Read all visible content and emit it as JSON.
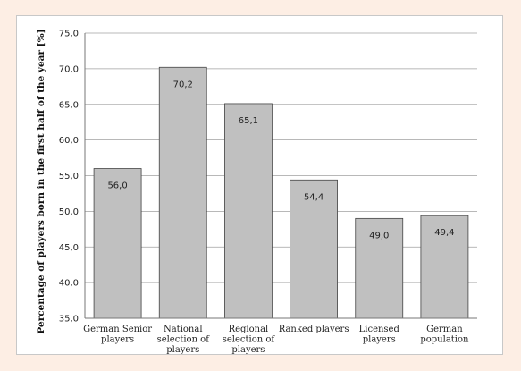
{
  "chart_data": {
    "type": "bar",
    "categories": [
      [
        "German Senior",
        "players"
      ],
      [
        "National",
        "selection of",
        "players"
      ],
      [
        "Regional",
        "selection of",
        "players"
      ],
      [
        "Ranked players"
      ],
      [
        "Licensed",
        "players"
      ],
      [
        "German",
        "population"
      ]
    ],
    "values": [
      56.0,
      70.2,
      65.1,
      54.4,
      49.0,
      49.4
    ],
    "value_labels": [
      "56,0",
      "70,2",
      "65,1",
      "54,4",
      "49,0",
      "49,4"
    ],
    "ylabel": "Percentage of players born in the first half of the year [%]",
    "ylim": [
      35,
      75
    ],
    "yticks": [
      35,
      40,
      45,
      50,
      55,
      60,
      65,
      70,
      75
    ],
    "ytick_labels": [
      "35,0",
      "40,0",
      "45,0",
      "50,0",
      "55,0",
      "60,0",
      "65,0",
      "70,0",
      "75,0"
    ],
    "grid": true,
    "colors": {
      "bar_fill": "#c0c0c0",
      "bar_stroke": "#444444",
      "grid": "#a0a0a0",
      "axis": "#777777"
    }
  }
}
